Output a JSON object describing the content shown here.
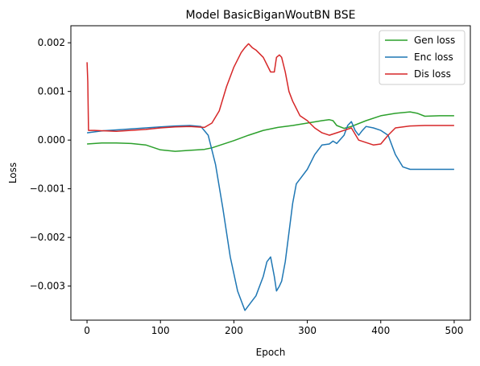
{
  "chart_data": {
    "type": "line",
    "title": "Model BasicBiganWoutBN BSE",
    "xlabel": "Epoch",
    "ylabel": "Loss",
    "xlim": [
      -22,
      522
    ],
    "ylim": [
      -0.0037,
      0.00235
    ],
    "xticks": [
      0,
      100,
      200,
      300,
      400,
      500
    ],
    "xtick_labels": [
      "0",
      "100",
      "200",
      "300",
      "400",
      "500"
    ],
    "yticks": [
      -0.003,
      -0.002,
      -0.001,
      0.0,
      0.001,
      0.002
    ],
    "ytick_labels": [
      "−0.003",
      "−0.002",
      "−0.001",
      "0.000",
      "0.001",
      "0.002"
    ],
    "grid": false,
    "legend_position": "top-right",
    "series": [
      {
        "name": "Gen loss",
        "color": "#2ca02c",
        "x": [
          0,
          20,
          40,
          60,
          80,
          100,
          120,
          140,
          160,
          170,
          180,
          200,
          220,
          240,
          260,
          280,
          300,
          320,
          330,
          335,
          340,
          350,
          360,
          380,
          400,
          420,
          440,
          450,
          460,
          480,
          500
        ],
        "y": [
          -8e-05,
          -6e-05,
          -6e-05,
          -7e-05,
          -0.0001,
          -0.0002,
          -0.00023,
          -0.00021,
          -0.00019,
          -0.00016,
          -0.00011,
          -1e-05,
          0.0001,
          0.0002,
          0.00026,
          0.0003,
          0.00035,
          0.0004,
          0.00042,
          0.0004,
          0.0003,
          0.00024,
          0.00028,
          0.0004,
          0.0005,
          0.00055,
          0.00058,
          0.00055,
          0.00049,
          0.0005,
          0.0005
        ]
      },
      {
        "name": "Enc loss",
        "color": "#1f77b4",
        "x": [
          0,
          20,
          40,
          60,
          80,
          100,
          120,
          140,
          155,
          165,
          175,
          185,
          195,
          205,
          210,
          215,
          220,
          225,
          230,
          240,
          245,
          250,
          255,
          258,
          262,
          265,
          270,
          275,
          280,
          285,
          290,
          300,
          310,
          320,
          330,
          335,
          340,
          350,
          355,
          360,
          365,
          370,
          375,
          380,
          390,
          400,
          410,
          420,
          430,
          440,
          460,
          480,
          500
        ],
        "y": [
          0.00015,
          0.00019,
          0.00021,
          0.00023,
          0.00025,
          0.00027,
          0.00029,
          0.0003,
          0.00028,
          0.0001,
          -0.0005,
          -0.0014,
          -0.0024,
          -0.0031,
          -0.0033,
          -0.0035,
          -0.0034,
          -0.0033,
          -0.0032,
          -0.0028,
          -0.0025,
          -0.0024,
          -0.0028,
          -0.0031,
          -0.003,
          -0.0029,
          -0.0025,
          -0.0019,
          -0.0013,
          -0.0009,
          -0.0008,
          -0.0006,
          -0.0003,
          -0.0001,
          -8e-05,
          -2e-05,
          -7e-05,
          0.0001,
          0.0003,
          0.00038,
          0.0002,
          0.0001,
          0.0002,
          0.00028,
          0.00025,
          0.0002,
          0.0001,
          -0.0003,
          -0.00055,
          -0.0006,
          -0.0006,
          -0.0006,
          -0.0006
        ]
      },
      {
        "name": "Dis loss",
        "color": "#d62728",
        "x": [
          0,
          1,
          2,
          10,
          40,
          80,
          100,
          120,
          140,
          160,
          170,
          180,
          190,
          200,
          210,
          215,
          220,
          225,
          230,
          240,
          250,
          255,
          258,
          262,
          265,
          270,
          275,
          280,
          290,
          300,
          310,
          320,
          330,
          340,
          350,
          360,
          370,
          380,
          390,
          400,
          410,
          420,
          440,
          460,
          480,
          500
        ],
        "y": [
          0.0016,
          0.0012,
          0.0002,
          0.0002,
          0.00018,
          0.00022,
          0.00025,
          0.00027,
          0.00028,
          0.00026,
          0.00035,
          0.0006,
          0.0011,
          0.0015,
          0.0018,
          0.0019,
          0.00198,
          0.0019,
          0.00185,
          0.0017,
          0.0014,
          0.0014,
          0.0017,
          0.00175,
          0.0017,
          0.0014,
          0.001,
          0.0008,
          0.0005,
          0.0004,
          0.00025,
          0.00015,
          0.0001,
          0.00015,
          0.0002,
          0.00025,
          0.0,
          -5e-05,
          -0.0001,
          -8e-05,
          0.0001,
          0.00025,
          0.00029,
          0.0003,
          0.0003,
          0.0003
        ]
      }
    ]
  }
}
